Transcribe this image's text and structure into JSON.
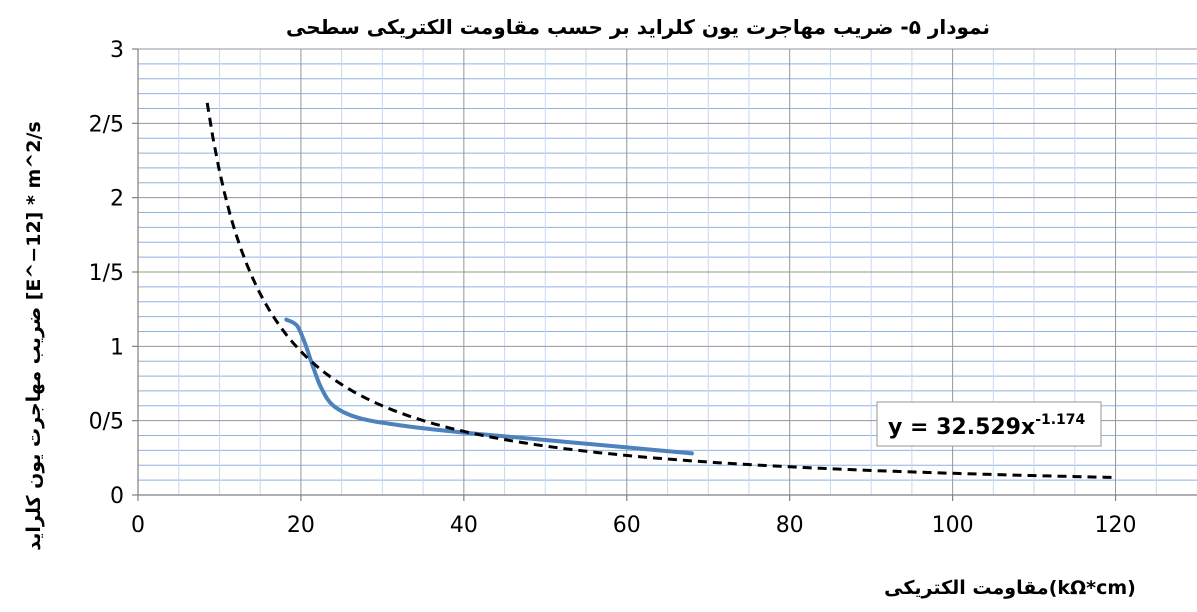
{
  "chart_data": {
    "type": "line",
    "title": "نمودار ۵- ضریب مهاجرت یون کلراید بر حسب مقاومت الکتریکی سطحی",
    "xlabel": "مقاومت الکتریکی(kΩ*cm)",
    "ylabel": "ضریب مهاجرت یون کلراید [E^−12] * m^2/s",
    "xlim": [
      0,
      130
    ],
    "ylim": [
      0,
      3
    ],
    "x_ticks": [
      {
        "value": 0,
        "label": "0"
      },
      {
        "value": 20,
        "label": "20"
      },
      {
        "value": 40,
        "label": "40"
      },
      {
        "value": 60,
        "label": "60"
      },
      {
        "value": 80,
        "label": "80"
      },
      {
        "value": 100,
        "label": "100"
      },
      {
        "value": 120,
        "label": "120"
      }
    ],
    "y_ticks": [
      {
        "value": 0,
        "label": "0"
      },
      {
        "value": 0.5,
        "label": "0/5"
      },
      {
        "value": 1,
        "label": "1"
      },
      {
        "value": 1.5,
        "label": "1/5"
      },
      {
        "value": 2,
        "label": "2"
      },
      {
        "value": 2.5,
        "label": "2/5"
      },
      {
        "value": 3,
        "label": "3"
      }
    ],
    "grid": true,
    "series": [
      {
        "style": "solid",
        "color": "#4f81bd",
        "points": [
          {
            "x": 18.2,
            "y": 1.18
          },
          {
            "x": 19.5,
            "y": 1.14
          },
          {
            "x": 20.5,
            "y": 1.02
          },
          {
            "x": 21.5,
            "y": 0.86
          },
          {
            "x": 22.5,
            "y": 0.72
          },
          {
            "x": 24,
            "y": 0.6
          },
          {
            "x": 27,
            "y": 0.52
          },
          {
            "x": 32,
            "y": 0.47
          },
          {
            "x": 40,
            "y": 0.42
          },
          {
            "x": 50,
            "y": 0.37
          },
          {
            "x": 60,
            "y": 0.32
          },
          {
            "x": 68,
            "y": 0.28
          }
        ]
      },
      {
        "style": "dashed",
        "color": "#000000",
        "trendline": {
          "a": 32.529,
          "b": -1.174,
          "x_start": 8.5,
          "x_end": 120
        }
      }
    ],
    "annotations": [
      {
        "text": "y = 32.529x",
        "superscript": "-1.174",
        "position": "right"
      }
    ]
  }
}
